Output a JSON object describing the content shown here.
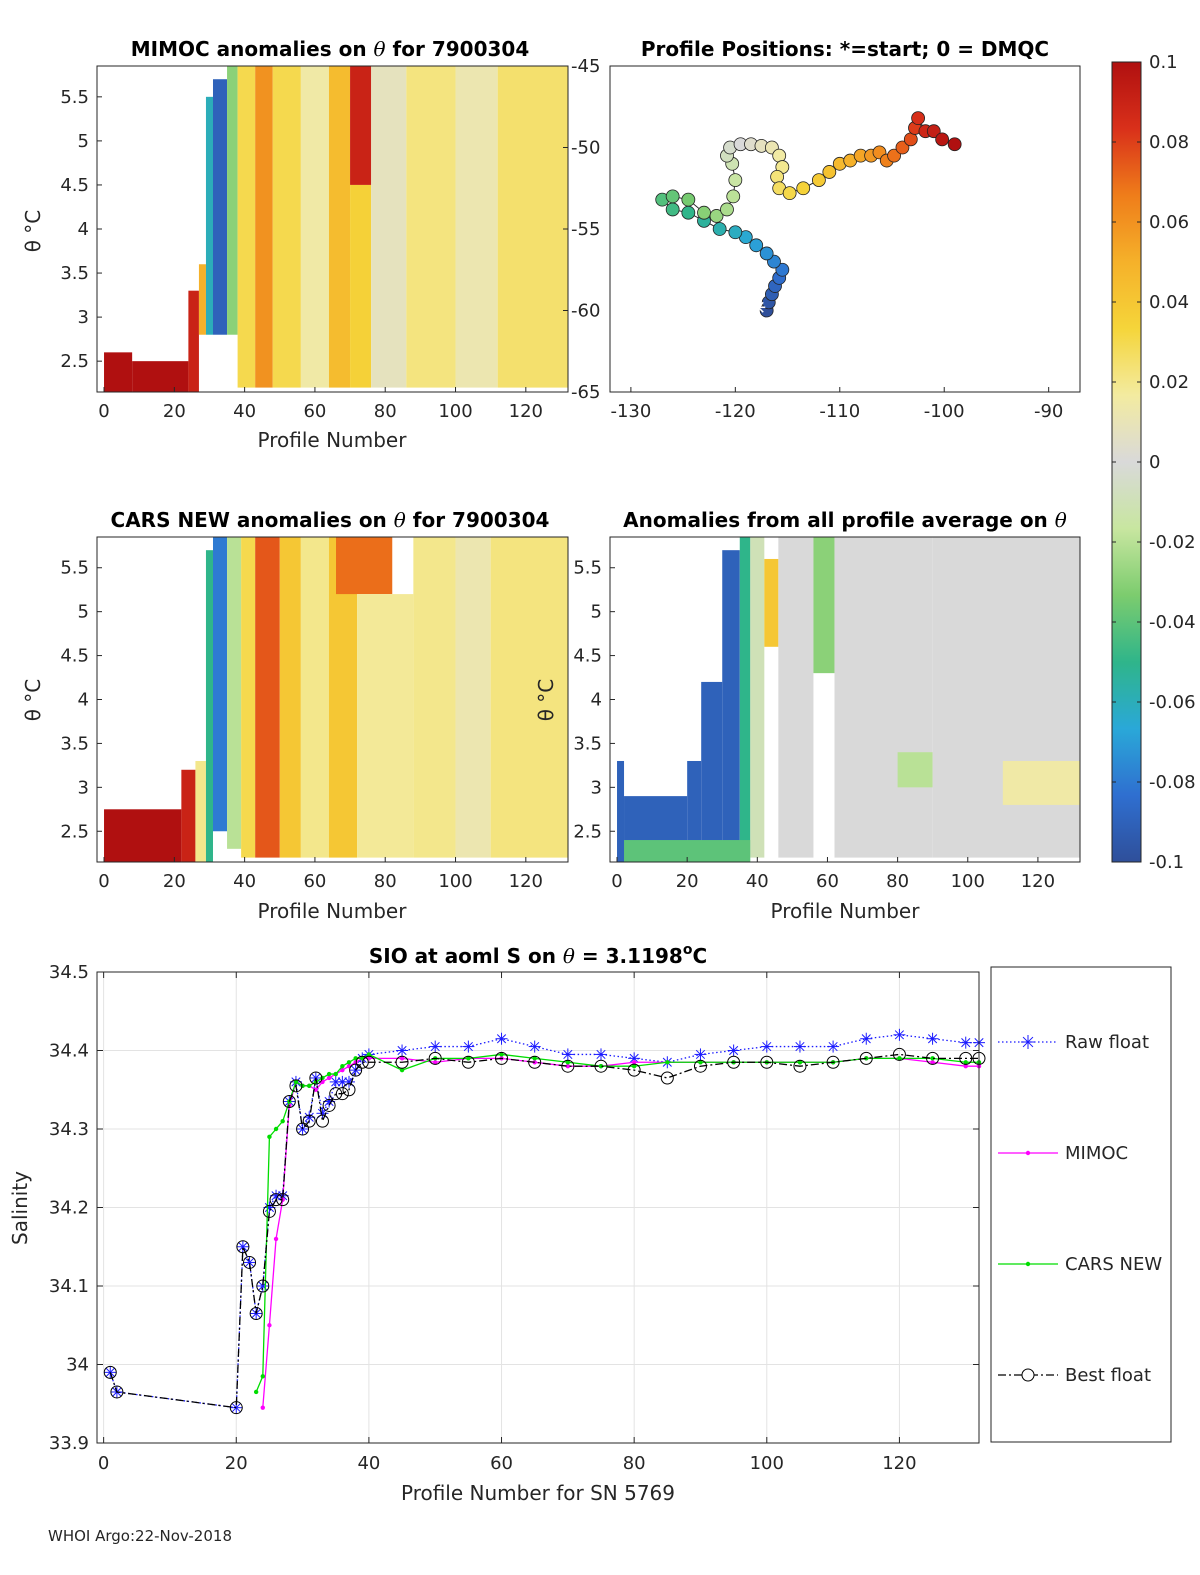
{
  "footer": "WHOI Argo:22-Nov-2018",
  "colorbar": {
    "min": -0.1,
    "max": 0.1,
    "tick_values": [
      0.1,
      0.08,
      0.06,
      0.04,
      0.02,
      0,
      -0.02,
      -0.04,
      -0.06,
      -0.08,
      -0.1
    ],
    "tick_labels": [
      "0.1",
      "0.08",
      "0.06",
      "0.04",
      "0.02",
      "0",
      "-0.02",
      "-0.04",
      "-0.06",
      "-0.08",
      "-0.1"
    ],
    "colors": [
      "#2f4f9a",
      "#2f6fd0",
      "#2aa8d8",
      "#2fb58a",
      "#7ccc6e",
      "#c8e6a0",
      "#d9d9d9",
      "#f3eba0",
      "#f5d53a",
      "#f5b12a",
      "#ef7d1a",
      "#d9301a",
      "#b01010"
    ]
  },
  "chart_data": [
    {
      "id": "mimoc",
      "type": "heatmap",
      "title_parts": [
        "MIMOC anomalies on ",
        "θ",
        "  for 7900304"
      ],
      "xlabel": "Profile Number",
      "ylabel": "θ °C",
      "xlim": [
        -2,
        132
      ],
      "ylim": [
        2.15,
        5.85
      ],
      "xticks": [
        0,
        20,
        40,
        60,
        80,
        100,
        120
      ],
      "yticks": [
        2.5,
        3,
        3.5,
        4,
        4.5,
        5,
        5.5
      ],
      "cells": [
        {
          "x0": 0,
          "x1": 8,
          "y0": 2.15,
          "y1": 2.6,
          "v": 0.1
        },
        {
          "x0": 8,
          "x1": 24,
          "y0": 2.15,
          "y1": 2.5,
          "v": 0.1
        },
        {
          "x0": 24,
          "x1": 27,
          "y0": 2.15,
          "y1": 3.3,
          "v": 0.09
        },
        {
          "x0": 27,
          "x1": 29,
          "y0": 2.8,
          "y1": 3.6,
          "v": 0.05
        },
        {
          "x0": 29,
          "x1": 31,
          "y0": 2.8,
          "y1": 5.5,
          "v": -0.06
        },
        {
          "x0": 31,
          "x1": 35,
          "y0": 2.8,
          "y1": 5.7,
          "v": -0.09
        },
        {
          "x0": 35,
          "x1": 38,
          "y0": 2.8,
          "y1": 5.85,
          "v": -0.03
        },
        {
          "x0": 38,
          "x1": 43,
          "y0": 2.2,
          "y1": 5.85,
          "v": 0.03
        },
        {
          "x0": 43,
          "x1": 48,
          "y0": 2.2,
          "y1": 5.85,
          "v": 0.06
        },
        {
          "x0": 48,
          "x1": 56,
          "y0": 2.2,
          "y1": 5.85,
          "v": 0.03
        },
        {
          "x0": 56,
          "x1": 64,
          "y0": 2.2,
          "y1": 5.85,
          "v": 0.015
        },
        {
          "x0": 64,
          "x1": 70,
          "y0": 2.2,
          "y1": 5.85,
          "v": 0.045
        },
        {
          "x0": 70,
          "x1": 76,
          "y0": 4.5,
          "y1": 5.85,
          "v": 0.09
        },
        {
          "x0": 70,
          "x1": 76,
          "y0": 2.2,
          "y1": 4.5,
          "v": 0.035
        },
        {
          "x0": 76,
          "x1": 86,
          "y0": 2.2,
          "y1": 5.85,
          "v": 0.008
        },
        {
          "x0": 86,
          "x1": 100,
          "y0": 2.2,
          "y1": 5.85,
          "v": 0.022
        },
        {
          "x0": 100,
          "x1": 112,
          "y0": 2.2,
          "y1": 5.85,
          "v": 0.012
        },
        {
          "x0": 112,
          "x1": 132,
          "y0": 2.2,
          "y1": 5.85,
          "v": 0.025
        }
      ]
    },
    {
      "id": "positions",
      "type": "scatter",
      "title": "Profile Positions: *=start; 0 = DMQC",
      "xlim": [
        -132,
        -87
      ],
      "ylim": [
        -65,
        -45
      ],
      "xticks": [
        -130,
        -120,
        -110,
        -100,
        -90
      ],
      "yticks": [
        -45,
        -50,
        -55,
        -60,
        -65
      ],
      "start": [
        -117.8,
        -59.8
      ],
      "points": [
        [
          -117.0,
          -60.0
        ],
        [
          -116.8,
          -59.5
        ],
        [
          -116.5,
          -59.0
        ],
        [
          -116.2,
          -58.5
        ],
        [
          -115.8,
          -58.0
        ],
        [
          -115.5,
          -57.5
        ],
        [
          -116.3,
          -57.0
        ],
        [
          -117.0,
          -56.5
        ],
        [
          -118.0,
          -56.0
        ],
        [
          -119.0,
          -55.5
        ],
        [
          -120.0,
          -55.2
        ],
        [
          -121.5,
          -55.0
        ],
        [
          -123.0,
          -54.5
        ],
        [
          -124.5,
          -54.0
        ],
        [
          -126.0,
          -53.8
        ],
        [
          -127.0,
          -53.2
        ],
        [
          -126.0,
          -53.0
        ],
        [
          -124.5,
          -53.2
        ],
        [
          -123.0,
          -54.0
        ],
        [
          -121.8,
          -54.2
        ],
        [
          -120.8,
          -53.8
        ],
        [
          -120.2,
          -53.0
        ],
        [
          -120.0,
          -52.0
        ],
        [
          -120.3,
          -51.0
        ],
        [
          -120.8,
          -50.5
        ],
        [
          -120.5,
          -50.0
        ],
        [
          -119.5,
          -49.8
        ],
        [
          -118.5,
          -49.8
        ],
        [
          -117.5,
          -49.9
        ],
        [
          -116.5,
          -50.0
        ],
        [
          -115.8,
          -50.5
        ],
        [
          -115.5,
          -51.2
        ],
        [
          -116.0,
          -51.8
        ],
        [
          -115.8,
          -52.5
        ],
        [
          -114.8,
          -52.8
        ],
        [
          -113.5,
          -52.5
        ],
        [
          -112.0,
          -52.0
        ],
        [
          -111.0,
          -51.5
        ],
        [
          -110.0,
          -51.0
        ],
        [
          -109.0,
          -50.8
        ],
        [
          -108.0,
          -50.5
        ],
        [
          -107.0,
          -50.5
        ],
        [
          -106.2,
          -50.3
        ],
        [
          -105.5,
          -50.8
        ],
        [
          -104.8,
          -50.5
        ],
        [
          -104.0,
          -50.0
        ],
        [
          -103.2,
          -49.5
        ],
        [
          -102.8,
          -48.8
        ],
        [
          -102.5,
          -48.2
        ],
        [
          -101.8,
          -49.0
        ],
        [
          -101.0,
          -49.0
        ],
        [
          -100.2,
          -49.5
        ],
        [
          -99.0,
          -49.8
        ]
      ]
    },
    {
      "id": "cars",
      "type": "heatmap",
      "title_parts": [
        "CARS NEW anomalies on ",
        "θ",
        " for 7900304"
      ],
      "xlabel": "Profile Number",
      "ylabel": "θ °C",
      "xlim": [
        -2,
        132
      ],
      "ylim": [
        2.15,
        5.85
      ],
      "xticks": [
        0,
        20,
        40,
        60,
        80,
        100,
        120
      ],
      "yticks": [
        2.5,
        3,
        3.5,
        4,
        4.5,
        5,
        5.5
      ],
      "cells": [
        {
          "x0": 0,
          "x1": 22,
          "y0": 2.15,
          "y1": 2.75,
          "v": 0.1
        },
        {
          "x0": 22,
          "x1": 26,
          "y0": 2.15,
          "y1": 3.2,
          "v": 0.09
        },
        {
          "x0": 26,
          "x1": 29,
          "y0": 2.15,
          "y1": 3.3,
          "v": 0.02
        },
        {
          "x0": 29,
          "x1": 31,
          "y0": 2.15,
          "y1": 5.7,
          "v": -0.05
        },
        {
          "x0": 31,
          "x1": 35,
          "y0": 2.5,
          "y1": 5.85,
          "v": -0.08
        },
        {
          "x0": 35,
          "x1": 39,
          "y0": 2.3,
          "y1": 5.85,
          "v": -0.02
        },
        {
          "x0": 39,
          "x1": 43,
          "y0": 2.2,
          "y1": 5.85,
          "v": 0.03
        },
        {
          "x0": 43,
          "x1": 50,
          "y0": 2.2,
          "y1": 5.85,
          "v": 0.075
        },
        {
          "x0": 50,
          "x1": 56,
          "y0": 2.2,
          "y1": 5.85,
          "v": 0.04
        },
        {
          "x0": 56,
          "x1": 64,
          "y0": 2.2,
          "y1": 5.85,
          "v": 0.02
        },
        {
          "x0": 64,
          "x1": 72,
          "y0": 2.2,
          "y1": 5.85,
          "v": 0.04
        },
        {
          "x0": 66,
          "x1": 82,
          "y0": 5.2,
          "y1": 5.85,
          "v": 0.07
        },
        {
          "x0": 72,
          "x1": 88,
          "y0": 2.2,
          "y1": 5.2,
          "v": 0.018
        },
        {
          "x0": 88,
          "x1": 100,
          "y0": 2.2,
          "y1": 5.85,
          "v": 0.02
        },
        {
          "x0": 100,
          "x1": 110,
          "y0": 2.2,
          "y1": 5.85,
          "v": 0.012
        },
        {
          "x0": 110,
          "x1": 132,
          "y0": 2.2,
          "y1": 5.85,
          "v": 0.022
        }
      ]
    },
    {
      "id": "allavg",
      "type": "heatmap",
      "title_parts": [
        "Anomalies from all profile average on ",
        "θ"
      ],
      "xlabel": "Profile Number",
      "ylabel": "θ °C",
      "xlim": [
        -2,
        132
      ],
      "ylim": [
        2.15,
        5.85
      ],
      "xticks": [
        0,
        20,
        40,
        60,
        80,
        100,
        120
      ],
      "yticks": [
        2.5,
        3,
        3.5,
        4,
        4.5,
        5,
        5.5
      ],
      "cells": [
        {
          "x0": 0,
          "x1": 2,
          "y0": 2.15,
          "y1": 3.3,
          "v": -0.09
        },
        {
          "x0": 2,
          "x1": 20,
          "y0": 2.15,
          "y1": 2.9,
          "v": -0.09
        },
        {
          "x0": 20,
          "x1": 24,
          "y0": 2.15,
          "y1": 3.3,
          "v": -0.09
        },
        {
          "x0": 24,
          "x1": 30,
          "y0": 2.15,
          "y1": 4.2,
          "v": -0.09
        },
        {
          "x0": 30,
          "x1": 35,
          "y0": 2.15,
          "y1": 5.7,
          "v": -0.09
        },
        {
          "x0": 35,
          "x1": 38,
          "y0": 2.2,
          "y1": 5.85,
          "v": -0.05
        },
        {
          "x0": 2,
          "x1": 38,
          "y0": 2.15,
          "y1": 2.4,
          "v": -0.04
        },
        {
          "x0": 38,
          "x1": 42,
          "y0": 2.2,
          "y1": 5.85,
          "v": -0.01
        },
        {
          "x0": 42,
          "x1": 46,
          "y0": 4.6,
          "y1": 5.6,
          "v": 0.04
        },
        {
          "x0": 46,
          "x1": 56,
          "y0": 2.2,
          "y1": 5.85,
          "v": 0.0
        },
        {
          "x0": 56,
          "x1": 62,
          "y0": 4.3,
          "y1": 5.85,
          "v": -0.03
        },
        {
          "x0": 62,
          "x1": 90,
          "y0": 2.2,
          "y1": 5.85,
          "v": 0.0
        },
        {
          "x0": 80,
          "x1": 90,
          "y0": 3.0,
          "y1": 3.4,
          "v": -0.02
        },
        {
          "x0": 90,
          "x1": 132,
          "y0": 2.2,
          "y1": 5.85,
          "v": 0.0
        },
        {
          "x0": 110,
          "x1": 132,
          "y0": 2.8,
          "y1": 3.3,
          "v": 0.015
        }
      ]
    },
    {
      "id": "salinity",
      "type": "line",
      "title_main": "SIO at aoml S on ",
      "title_theta": "θ",
      "title_value": " = 3.1198",
      "title_sup": "o",
      "title_unit": "C",
      "xlabel": "Profile Number for SN 5769",
      "ylabel": "Salinity",
      "xlim": [
        -1,
        132
      ],
      "ylim": [
        33.9,
        34.5
      ],
      "xticks": [
        0,
        20,
        40,
        60,
        80,
        100,
        120
      ],
      "yticks": [
        33.9,
        34,
        34.1,
        34.2,
        34.3,
        34.4,
        34.5
      ],
      "ytick_labels": [
        "33.9",
        "34",
        "34.1",
        "34.2",
        "34.3",
        "34.4",
        "34.5"
      ],
      "x": [
        1,
        2,
        20,
        21,
        22,
        23,
        24,
        25,
        26,
        27,
        28,
        29,
        30,
        31,
        32,
        33,
        34,
        35,
        36,
        37,
        38,
        39,
        40,
        45,
        50,
        55,
        60,
        65,
        70,
        75,
        80,
        85,
        90,
        95,
        100,
        105,
        110,
        115,
        120,
        125,
        130,
        132
      ],
      "series": [
        {
          "name": "Raw float",
          "color": "#1a1aff",
          "style": "dotted",
          "marker": "star",
          "values": [
            33.99,
            33.965,
            33.945,
            34.15,
            34.13,
            34.065,
            34.1,
            34.2,
            34.215,
            34.215,
            34.335,
            34.36,
            34.3,
            34.315,
            34.365,
            34.32,
            34.335,
            34.36,
            34.36,
            34.36,
            34.375,
            34.39,
            34.395,
            34.4,
            34.405,
            34.405,
            34.415,
            34.405,
            34.395,
            34.395,
            34.39,
            34.385,
            34.395,
            34.4,
            34.405,
            34.405,
            34.405,
            34.415,
            34.42,
            34.415,
            34.41,
            34.41
          ]
        },
        {
          "name": "MIMOC",
          "color": "#ff00ff",
          "style": "solid",
          "marker": "dot",
          "values": [
            null,
            null,
            null,
            null,
            null,
            null,
            33.945,
            34.05,
            34.16,
            34.21,
            34.33,
            34.36,
            34.355,
            34.355,
            34.35,
            34.36,
            34.365,
            34.37,
            34.375,
            34.38,
            34.385,
            34.39,
            34.39,
            34.39,
            34.385,
            34.39,
            34.39,
            34.385,
            34.38,
            34.38,
            34.385,
            34.385,
            34.385,
            34.385,
            34.385,
            34.385,
            34.385,
            34.39,
            34.39,
            34.385,
            34.38,
            34.38
          ]
        },
        {
          "name": "CARS NEW",
          "color": "#00dd00",
          "style": "solid",
          "marker": "dot",
          "values": [
            null,
            null,
            null,
            null,
            null,
            33.965,
            33.985,
            34.29,
            34.3,
            34.31,
            34.335,
            34.36,
            34.355,
            34.355,
            34.36,
            34.365,
            34.37,
            34.37,
            34.38,
            34.385,
            34.39,
            34.39,
            34.395,
            34.375,
            34.39,
            34.39,
            34.395,
            34.39,
            34.385,
            34.38,
            34.38,
            34.385,
            34.385,
            34.385,
            34.385,
            34.385,
            34.385,
            34.39,
            34.39,
            34.39,
            34.385,
            34.385
          ]
        },
        {
          "name": "Best float",
          "color": "#000000",
          "style": "dashdot",
          "marker": "circle",
          "values": [
            33.99,
            33.965,
            33.945,
            34.15,
            34.13,
            34.065,
            34.1,
            34.195,
            34.21,
            34.21,
            34.335,
            34.355,
            34.3,
            34.31,
            34.365,
            34.31,
            34.33,
            34.345,
            34.345,
            34.35,
            34.375,
            34.385,
            34.385,
            34.385,
            34.39,
            34.385,
            34.39,
            34.385,
            34.38,
            34.38,
            34.375,
            34.365,
            34.38,
            34.385,
            34.385,
            34.38,
            34.385,
            34.39,
            34.395,
            34.39,
            34.39,
            34.39
          ]
        }
      ]
    }
  ]
}
